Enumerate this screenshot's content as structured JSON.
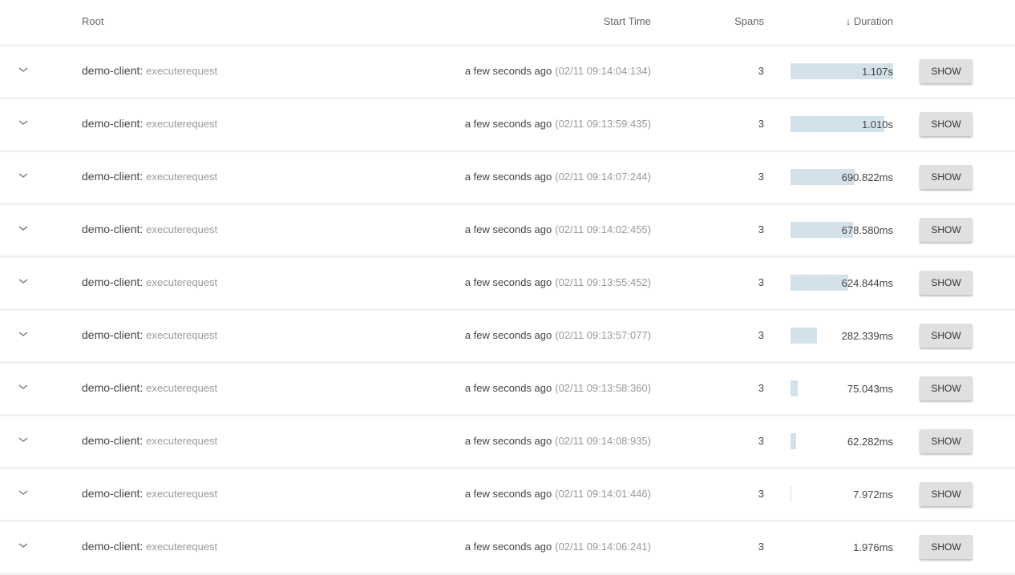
{
  "header": {
    "root": "Root",
    "start_time": "Start Time",
    "spans": "Spans",
    "duration": "Duration",
    "sort_icon": "arrow-down-icon"
  },
  "bar_color": "#d3e2ea",
  "max_duration_ms": 1107,
  "rows": [
    {
      "service": "demo-client:",
      "operation": "executerequest",
      "relative": "a few seconds ago",
      "absolute": "(02/11 09:14:04:134)",
      "spans": "3",
      "duration": "1.107s",
      "duration_ms": 1107,
      "button": "SHOW"
    },
    {
      "service": "demo-client:",
      "operation": "executerequest",
      "relative": "a few seconds ago",
      "absolute": "(02/11 09:13:59:435)",
      "spans": "3",
      "duration": "1.010s",
      "duration_ms": 1010,
      "button": "SHOW"
    },
    {
      "service": "demo-client:",
      "operation": "executerequest",
      "relative": "a few seconds ago",
      "absolute": "(02/11 09:14:07:244)",
      "spans": "3",
      "duration": "690.822ms",
      "duration_ms": 690.822,
      "button": "SHOW"
    },
    {
      "service": "demo-client:",
      "operation": "executerequest",
      "relative": "a few seconds ago",
      "absolute": "(02/11 09:14:02:455)",
      "spans": "3",
      "duration": "678.580ms",
      "duration_ms": 678.58,
      "button": "SHOW"
    },
    {
      "service": "demo-client:",
      "operation": "executerequest",
      "relative": "a few seconds ago",
      "absolute": "(02/11 09:13:55:452)",
      "spans": "3",
      "duration": "624.844ms",
      "duration_ms": 624.844,
      "button": "SHOW"
    },
    {
      "service": "demo-client:",
      "operation": "executerequest",
      "relative": "a few seconds ago",
      "absolute": "(02/11 09:13:57:077)",
      "spans": "3",
      "duration": "282.339ms",
      "duration_ms": 282.339,
      "button": "SHOW"
    },
    {
      "service": "demo-client:",
      "operation": "executerequest",
      "relative": "a few seconds ago",
      "absolute": "(02/11 09:13:58:360)",
      "spans": "3",
      "duration": "75.043ms",
      "duration_ms": 75.043,
      "button": "SHOW"
    },
    {
      "service": "demo-client:",
      "operation": "executerequest",
      "relative": "a few seconds ago",
      "absolute": "(02/11 09:14:08:935)",
      "spans": "3",
      "duration": "62.282ms",
      "duration_ms": 62.282,
      "button": "SHOW"
    },
    {
      "service": "demo-client:",
      "operation": "executerequest",
      "relative": "a few seconds ago",
      "absolute": "(02/11 09:14:01:446)",
      "spans": "3",
      "duration": "7.972ms",
      "duration_ms": 7.972,
      "button": "SHOW"
    },
    {
      "service": "demo-client:",
      "operation": "executerequest",
      "relative": "a few seconds ago",
      "absolute": "(02/11 09:14:06:241)",
      "spans": "3",
      "duration": "1.976ms",
      "duration_ms": 1.976,
      "button": "SHOW"
    }
  ]
}
